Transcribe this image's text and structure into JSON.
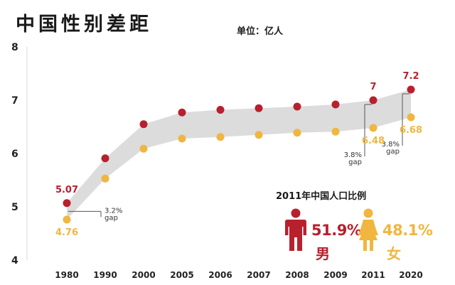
{
  "title": "中国性别差距",
  "unit_label": "单位：亿人",
  "chart_data": {
    "type": "line",
    "x": [
      "1980",
      "1990",
      "2000",
      "2005",
      "2006",
      "2007",
      "2008",
      "2009",
      "2011",
      "2020"
    ],
    "ylim": [
      4,
      8
    ],
    "yticks": [
      4,
      5,
      6,
      7,
      8
    ],
    "grid": false,
    "series": [
      {
        "name": "男",
        "color": "#b8202e",
        "values": [
          5.07,
          5.91,
          6.55,
          6.77,
          6.82,
          6.85,
          6.88,
          6.92,
          7.0,
          7.2
        ]
      },
      {
        "name": "女",
        "color": "#f0b640",
        "values": [
          4.76,
          5.53,
          6.09,
          6.28,
          6.31,
          6.35,
          6.39,
          6.41,
          6.48,
          6.68
        ]
      }
    ],
    "data_labels": [
      {
        "x": "1980",
        "series": 0,
        "text": "5.07"
      },
      {
        "x": "1980",
        "series": 1,
        "text": "4.76"
      },
      {
        "x": "2011",
        "series": 0,
        "text": "7"
      },
      {
        "x": "2011",
        "series": 1,
        "text": "6.48"
      },
      {
        "x": "2020",
        "series": 0,
        "text": "7.2"
      },
      {
        "x": "2020",
        "series": 1,
        "text": "6.68"
      }
    ],
    "annotations": [
      {
        "x": "1980",
        "line1": "3.2%",
        "line2": "gap"
      },
      {
        "x": "2011",
        "line1": "3.8%",
        "line2": "gap"
      },
      {
        "x": "2020",
        "line1": "3.8%",
        "line2": "gap"
      }
    ]
  },
  "inset": {
    "title": "2011年中国人口比例",
    "male": {
      "percent": "51.9%",
      "label": "男",
      "color": "#b8202e",
      "icon": "male-person-icon"
    },
    "female": {
      "percent": "48.1%",
      "label": "女",
      "color": "#f0b640",
      "icon": "female-person-icon"
    }
  }
}
